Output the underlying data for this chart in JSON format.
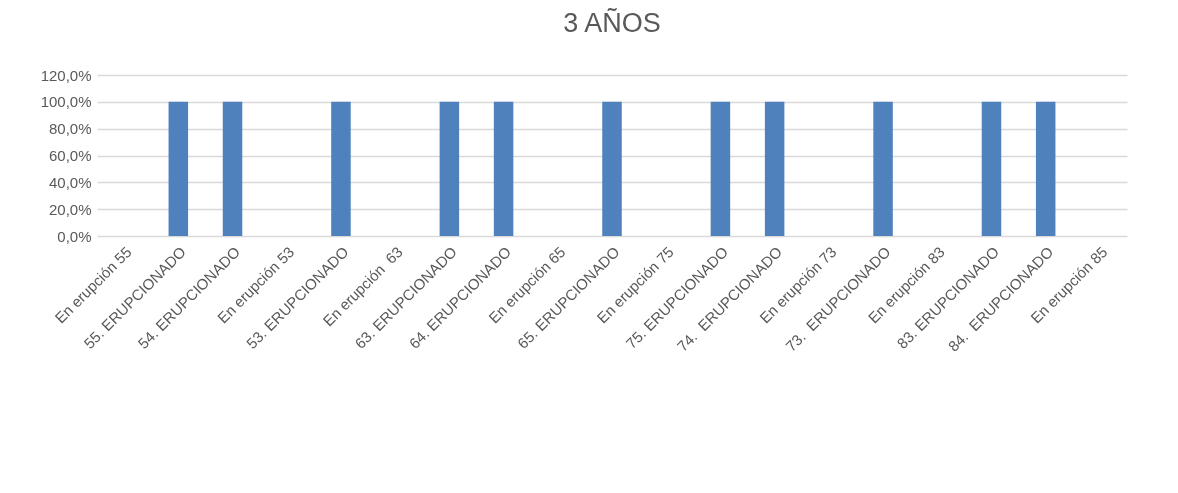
{
  "chart_data": {
    "type": "bar",
    "title": "3 AÑOS",
    "categories": [
      "En erupción 55",
      "55. ERUPCIONADO",
      "54. ERUPCIONADO",
      "En erupción 53",
      "53. ERUPCIONADO",
      "En erupción  63",
      "63. ERUPCIONADO",
      "64. ERUPCIONADO",
      "En erupción 65",
      "65. ERUPCIONADO",
      "En erupción 75",
      "75. ERUPCIONADO",
      "74.  ERUPCIONADO",
      "En erupción 73",
      "73.  ERUPCIONADO",
      "En erupción 83",
      "83. ERUPCIONADO",
      "84.  ERUPCIONADO",
      "En erupción 85"
    ],
    "values": [
      0,
      100,
      100,
      0,
      100,
      0,
      100,
      100,
      0,
      100,
      0,
      100,
      100,
      0,
      100,
      0,
      100,
      100,
      0
    ],
    "color": "#4f81bd",
    "ylim": [
      0,
      120
    ],
    "yticks": [
      {
        "value": 0,
        "label": "0,0%"
      },
      {
        "value": 20,
        "label": "20,0%"
      },
      {
        "value": 40,
        "label": "40,0%"
      },
      {
        "value": 60,
        "label": "60,0%"
      },
      {
        "value": 80,
        "label": "80,0%"
      },
      {
        "value": 100,
        "label": "100,0%"
      },
      {
        "value": 120,
        "label": "120,0%"
      }
    ],
    "grid": "y"
  }
}
